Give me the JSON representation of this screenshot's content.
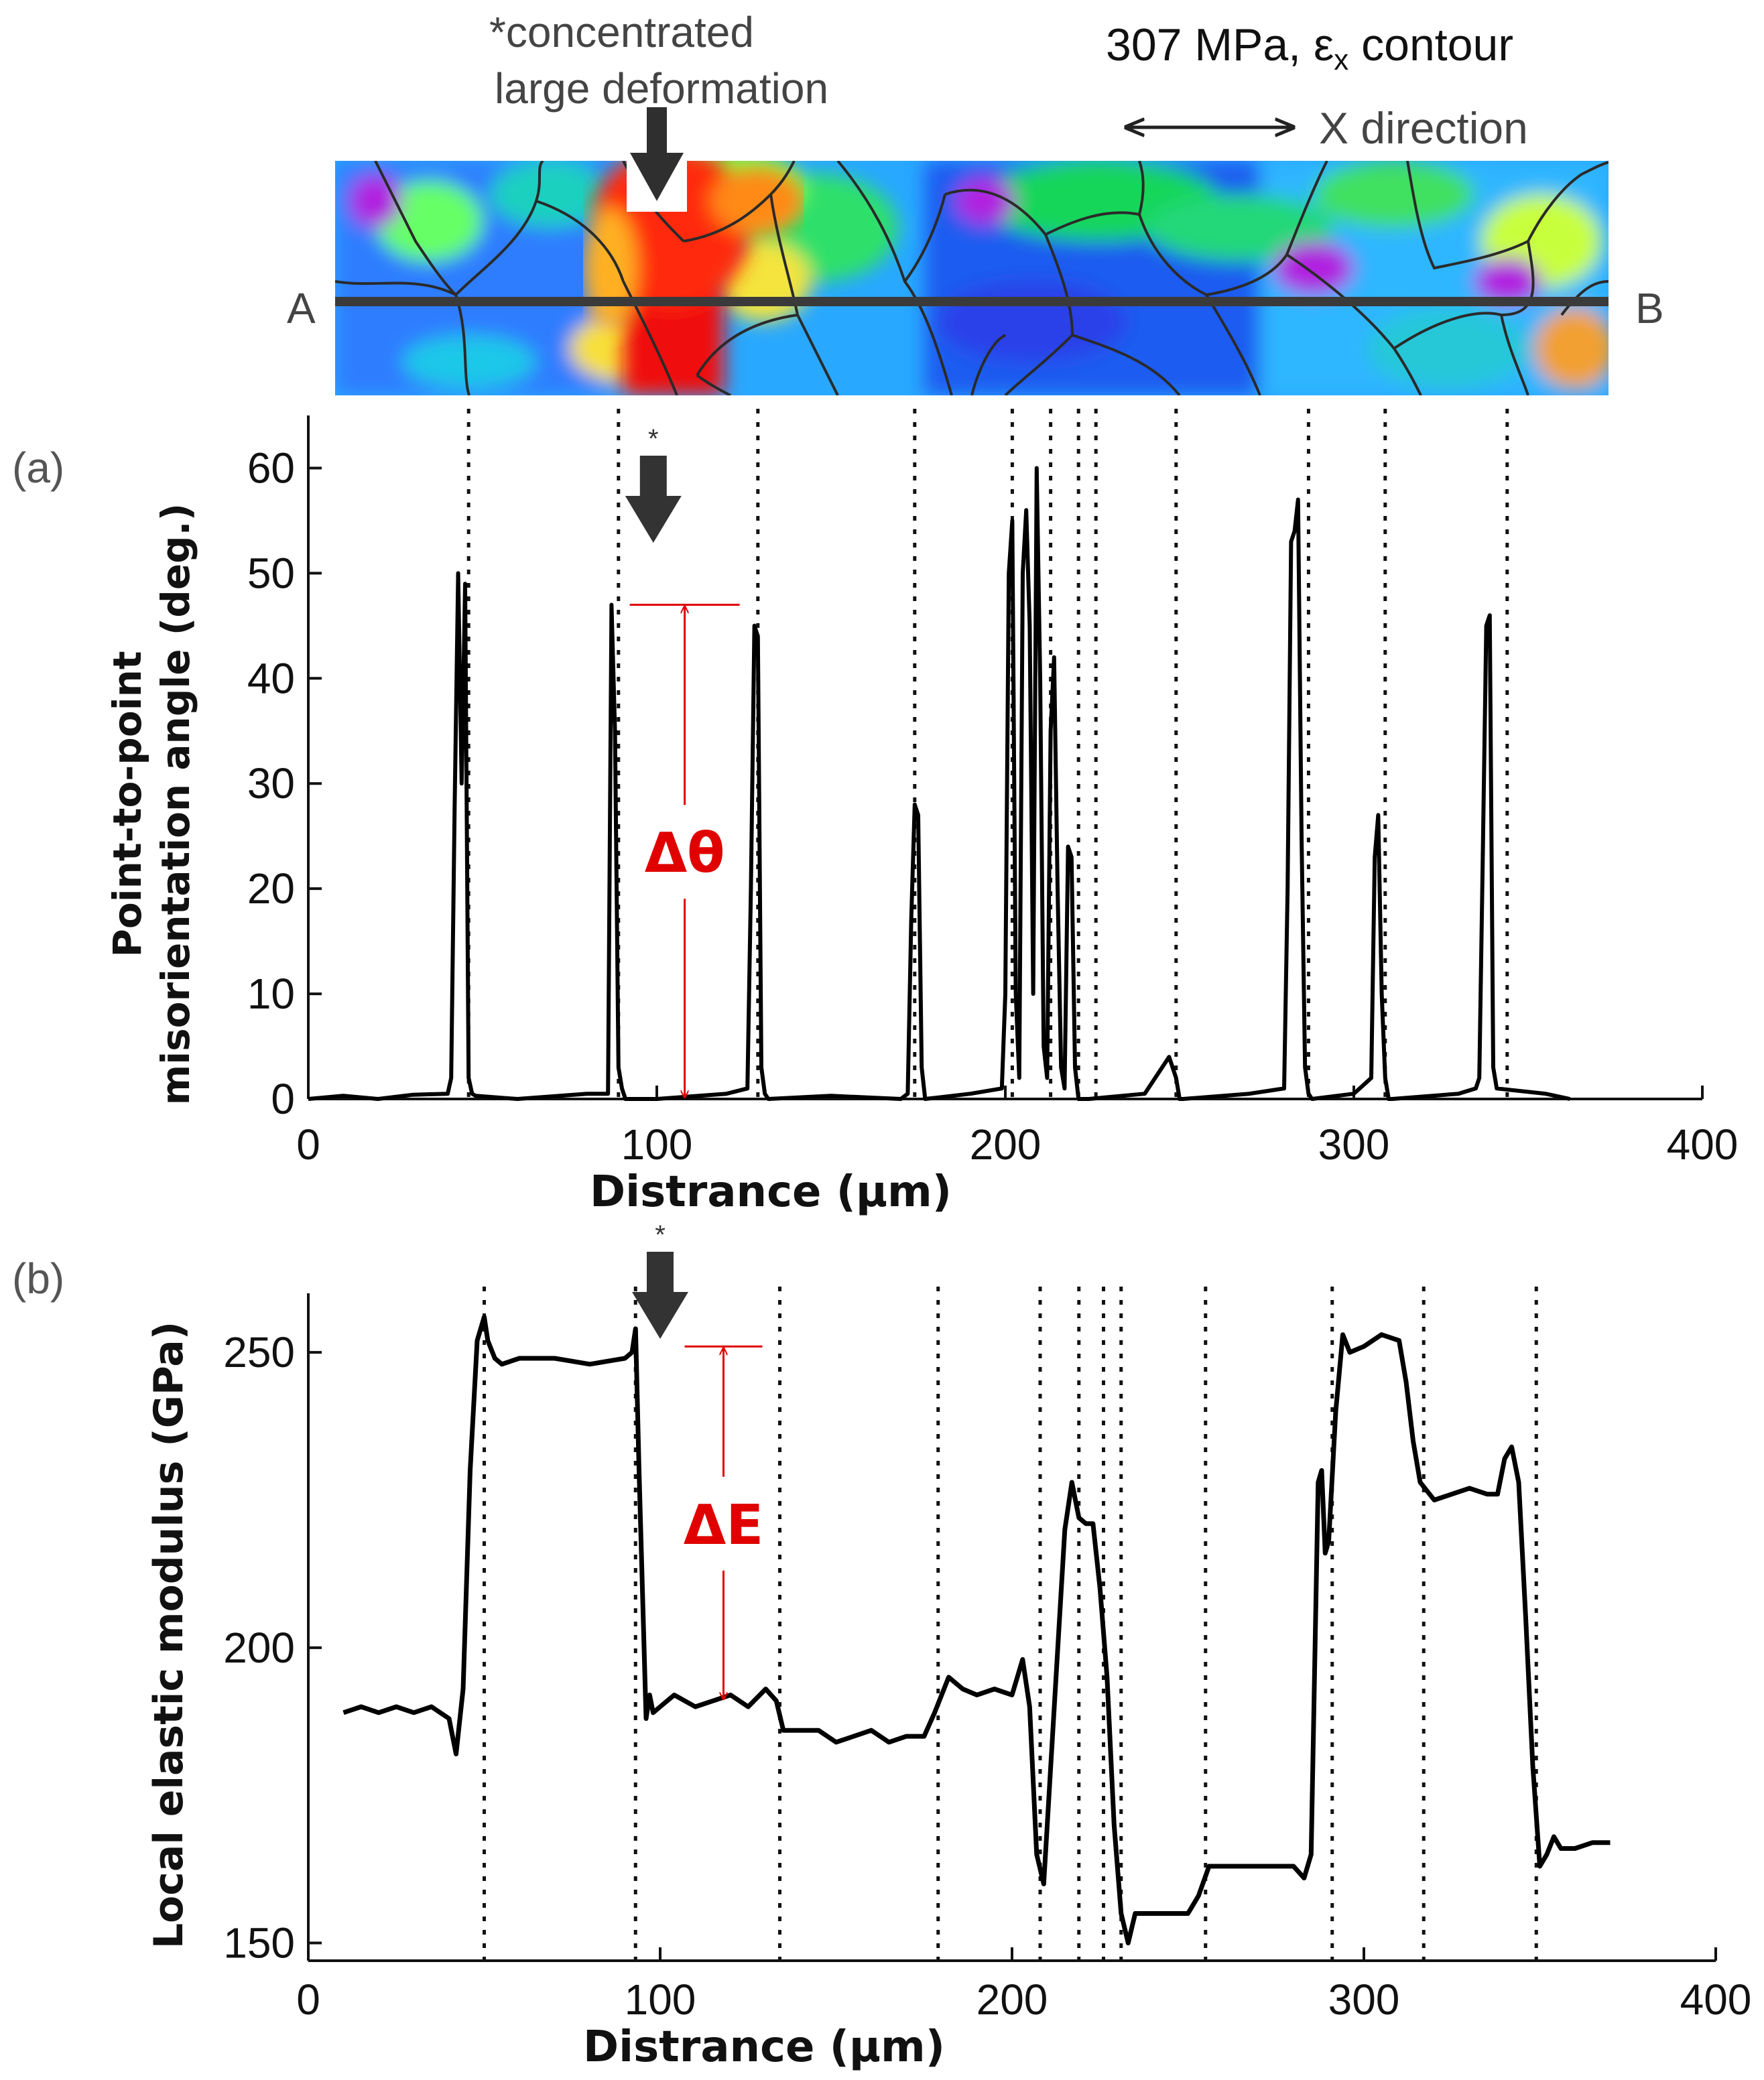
{
  "top_map": {
    "title_value": "307 MPa, ",
    "title_symbol": "ε",
    "title_sub": "x",
    "title_tail": " contour",
    "note_line1": "*concentrated",
    "note_line2": "large deformation",
    "direction_label": "X direction",
    "point_a": "A",
    "point_b": "B"
  },
  "chart_data": [
    {
      "type": "line",
      "panel_label": "(a)",
      "star": "*",
      "xlabel": "Distrance (μm)",
      "ylabel_line1": "Point-to-point",
      "ylabel_line2": "misorientation angle (deg.)",
      "xlim": [
        0,
        400
      ],
      "ylim": [
        0,
        65
      ],
      "xticks": [
        0,
        100,
        200,
        300,
        400
      ],
      "yticks": [
        0,
        10,
        20,
        30,
        40,
        50,
        60
      ],
      "delta_label": "Δθ",
      "delta_value_deg": 47,
      "delta_x_um": 108,
      "arrow_x_um": 99,
      "boundaries_um": [
        46,
        89,
        129,
        174,
        202,
        213,
        221,
        226,
        249,
        287,
        309,
        344
      ],
      "series": [
        {
          "name": "misorientation",
          "x": [
            0,
            10,
            20,
            30,
            40,
            41,
            42,
            43,
            44,
            45,
            46,
            47,
            48,
            60,
            80,
            86,
            87,
            88,
            89,
            90,
            91,
            100,
            120,
            126,
            127,
            128,
            129,
            130,
            131,
            132,
            150,
            170,
            172,
            173,
            174,
            175,
            176,
            177,
            190,
            199,
            200,
            201,
            202,
            203,
            204,
            205,
            206,
            207,
            208,
            209,
            210,
            211,
            212,
            213,
            214,
            215,
            216,
            217,
            218,
            219,
            220,
            221,
            222,
            223,
            224,
            240,
            247,
            248,
            249,
            250,
            251,
            270,
            280,
            281,
            282,
            283,
            284,
            285,
            286,
            287,
            288,
            300,
            305,
            306,
            307,
            308,
            309,
            310,
            311,
            330,
            335,
            336,
            337,
            338,
            339,
            340,
            341,
            355,
            362
          ],
          "y": [
            0,
            0.3,
            0,
            0.4,
            0.5,
            2,
            28,
            50,
            30,
            49,
            2,
            0.5,
            0.3,
            0,
            0.5,
            0.5,
            47,
            35,
            3,
            1,
            0,
            0,
            0.5,
            1,
            20,
            45,
            44,
            3,
            0.5,
            0,
            0.3,
            0,
            0.5,
            17,
            28,
            27,
            3,
            0,
            0.5,
            1,
            10,
            50,
            55,
            10,
            2,
            50,
            56,
            45,
            10,
            60,
            40,
            5,
            2,
            35,
            42,
            20,
            3,
            1,
            24,
            23,
            3,
            0,
            0,
            0,
            0,
            0.5,
            4,
            3,
            2,
            0,
            0,
            0.5,
            1,
            20,
            53,
            54,
            57,
            25,
            3,
            0.5,
            0,
            0.5,
            2,
            23,
            27,
            10,
            2,
            0,
            0,
            0.5,
            1,
            2,
            23,
            45,
            46,
            3,
            1,
            0.5,
            0
          ]
        }
      ]
    },
    {
      "type": "line",
      "panel_label": "(b)",
      "star": "*",
      "xlabel": "Distrance (μm)",
      "ylabel": "Local elastic modulus (GPa)",
      "xlim": [
        0,
        400
      ],
      "ylim": [
        147,
        260
      ],
      "xticks": [
        0,
        100,
        200,
        300,
        400
      ],
      "yticks": [
        150,
        200,
        250
      ],
      "delta_label": "ΔE",
      "delta_top_gpa": 251,
      "delta_bottom_gpa": 191,
      "delta_x_um": 118,
      "arrow_x_um": 100,
      "boundaries_um": [
        50,
        93,
        134,
        179,
        208,
        219,
        226,
        231,
        255,
        291,
        317,
        349
      ],
      "series": [
        {
          "name": "modulus",
          "x": [
            10,
            15,
            20,
            25,
            30,
            35,
            40,
            42,
            44,
            46,
            48,
            50,
            51,
            53,
            55,
            60,
            70,
            80,
            90,
            92,
            93,
            94,
            96,
            97,
            98,
            100,
            104,
            110,
            115,
            120,
            125,
            130,
            133,
            135,
            140,
            145,
            150,
            155,
            160,
            165,
            170,
            175,
            178,
            182,
            186,
            190,
            195,
            200,
            203,
            205,
            207,
            209,
            211,
            213,
            215,
            217,
            219,
            221,
            223,
            225,
            227,
            229,
            231,
            233,
            235,
            240,
            250,
            253,
            256,
            260,
            270,
            280,
            283,
            285,
            287,
            288,
            289,
            290,
            292,
            294,
            296,
            300,
            305,
            310,
            312,
            314,
            316,
            320,
            325,
            330,
            335,
            338,
            340,
            342,
            344,
            346,
            348,
            350,
            352,
            354,
            356,
            360,
            365,
            370
          ],
          "y": [
            189,
            190,
            189,
            190,
            189,
            190,
            188,
            182,
            193,
            230,
            252,
            256,
            252,
            249,
            248,
            249,
            249,
            248,
            249,
            250,
            254,
            230,
            188,
            192,
            189,
            190,
            192,
            190,
            191,
            192,
            190,
            193,
            191,
            186,
            186,
            186,
            184,
            185,
            186,
            184,
            185,
            185,
            189,
            195,
            193,
            192,
            193,
            192,
            198,
            190,
            165,
            160,
            180,
            200,
            220,
            228,
            222,
            221,
            221,
            210,
            195,
            170,
            155,
            150,
            155,
            155,
            155,
            158,
            163,
            163,
            163,
            163,
            161,
            165,
            228,
            230,
            216,
            218,
            240,
            253,
            250,
            251,
            253,
            252,
            245,
            235,
            228,
            225,
            226,
            227,
            226,
            226,
            232,
            234,
            228,
            205,
            180,
            163,
            165,
            168,
            166,
            166,
            167,
            167
          ]
        }
      ]
    }
  ]
}
